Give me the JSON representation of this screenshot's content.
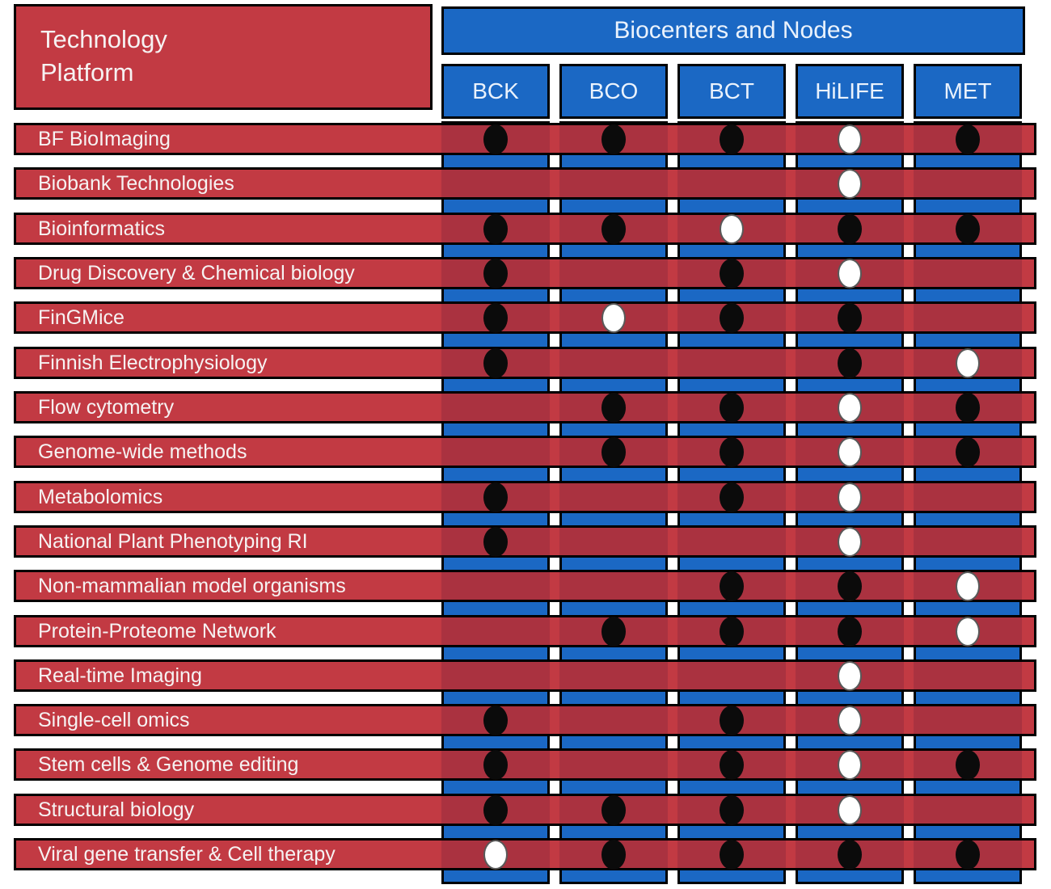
{
  "figure": {
    "title_line1": "Technology",
    "title_line2": "Platform",
    "columns_header": "Biocenters and Nodes"
  },
  "columns": [
    "BCK",
    "BCO",
    "BCT",
    "HiLIFE",
    "MET"
  ],
  "rows": [
    {
      "label": "BF BioImaging",
      "cells": [
        "black",
        "black",
        "black",
        "white",
        "black"
      ]
    },
    {
      "label": "Biobank Technologies",
      "cells": [
        null,
        null,
        null,
        "white",
        null
      ]
    },
    {
      "label": "Bioinformatics",
      "cells": [
        "black",
        "black",
        "white",
        "black",
        "black"
      ]
    },
    {
      "label": "Drug Discovery & Chemical biology",
      "cells": [
        "black",
        null,
        "black",
        "white",
        null
      ]
    },
    {
      "label": "FinGMice",
      "cells": [
        "black",
        "white",
        "black",
        "black",
        null
      ]
    },
    {
      "label": "Finnish Electrophysiology",
      "cells": [
        "black",
        null,
        null,
        "black",
        "white"
      ]
    },
    {
      "label": "Flow cytometry",
      "cells": [
        null,
        "black",
        "black",
        "white",
        "black"
      ]
    },
    {
      "label": "Genome-wide methods",
      "cells": [
        null,
        "black",
        "black",
        "white",
        "black"
      ]
    },
    {
      "label": "Metabolomics",
      "cells": [
        "black",
        null,
        "black",
        "white",
        null
      ]
    },
    {
      "label": "National Plant Phenotyping RI",
      "cells": [
        "black",
        null,
        null,
        "white",
        null
      ]
    },
    {
      "label": "Non-mammalian model organisms",
      "cells": [
        null,
        null,
        "black",
        "black",
        "white"
      ]
    },
    {
      "label": "Protein-Proteome Network",
      "cells": [
        null,
        "black",
        "black",
        "black",
        "white"
      ]
    },
    {
      "label": "Real-time Imaging",
      "cells": [
        null,
        null,
        null,
        "white",
        null
      ]
    },
    {
      "label": "Single-cell omics",
      "cells": [
        "black",
        null,
        "black",
        "white",
        null
      ]
    },
    {
      "label": "Stem cells & Genome editing",
      "cells": [
        "black",
        null,
        "black",
        "white",
        "black"
      ]
    },
    {
      "label": "Structural biology",
      "cells": [
        "black",
        "black",
        "black",
        "white",
        null
      ]
    },
    {
      "label": "Viral gene transfer & Cell therapy",
      "cells": [
        "white",
        "black",
        "black",
        "black",
        "black"
      ]
    }
  ],
  "colors": {
    "row_red": "#C23A43",
    "column_blue": "#1B68C4",
    "dot_black": "#0B0B0B",
    "dot_white": "#FFFFFF",
    "border": "#000000"
  }
}
